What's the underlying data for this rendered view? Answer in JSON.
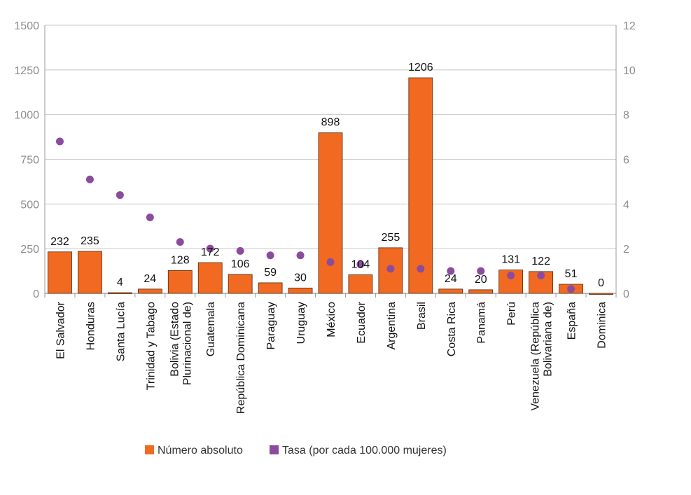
{
  "chart_data": {
    "type": "bar",
    "categories": [
      [
        "El Salvador"
      ],
      [
        "Honduras"
      ],
      [
        "Santa Lucía"
      ],
      [
        "Trinidad y Tabago"
      ],
      [
        "Bolivia (Estado",
        "Plurinacional de)"
      ],
      [
        "Guatemala"
      ],
      [
        "República Dominicana"
      ],
      [
        "Paraguay"
      ],
      [
        "Uruguay"
      ],
      [
        "México"
      ],
      [
        "Ecuador"
      ],
      [
        "Argentina"
      ],
      [
        "Brasil"
      ],
      [
        "Costa Rica"
      ],
      [
        "Panamá"
      ],
      [
        "Perú"
      ],
      [
        "Venezuela (República",
        "Bolivariana de)"
      ],
      [
        "España"
      ],
      [
        "Dominica"
      ]
    ],
    "series": [
      {
        "name": "Número absoluto",
        "type": "bar",
        "axis": "left",
        "color": "#f26a21",
        "values": [
          232,
          235,
          4,
          24,
          128,
          172,
          106,
          59,
          30,
          898,
          104,
          255,
          1206,
          24,
          20,
          131,
          122,
          51,
          0
        ],
        "labels": [
          "232",
          "235",
          "4",
          "24",
          "128",
          "172",
          "106",
          "59",
          "30",
          "898",
          "104",
          "255",
          "1206",
          "24",
          "20",
          "131",
          "122",
          "51",
          "0"
        ]
      },
      {
        "name": "Tasa (por cada 100.000 mujeres)",
        "type": "scatter",
        "axis": "right",
        "color": "#8b4c9e",
        "values": [
          6.8,
          5.1,
          4.4,
          3.4,
          2.3,
          2.0,
          1.9,
          1.7,
          1.7,
          1.4,
          1.3,
          1.1,
          1.1,
          1.0,
          1.0,
          0.8,
          0.8,
          0.2,
          null
        ]
      }
    ],
    "y_left": {
      "min": 0,
      "max": 1500,
      "ticks": [
        "0",
        "250",
        "500",
        "750",
        "1000",
        "1250",
        "1500"
      ]
    },
    "y_right": {
      "min": 0,
      "max": 12,
      "ticks": [
        "0",
        "2",
        "4",
        "6",
        "8",
        "10",
        "12"
      ]
    },
    "grid": true,
    "legend_position": "bottom",
    "legend": [
      "Número absoluto",
      "Tasa (por cada 100.000 mujeres)"
    ]
  }
}
